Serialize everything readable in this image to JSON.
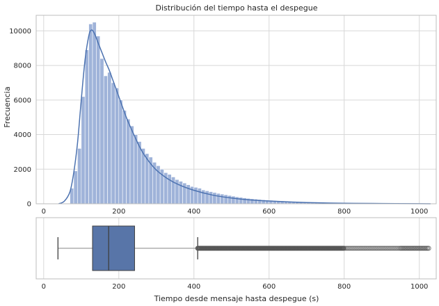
{
  "colors": {
    "bar_fill": "#9fb3d9",
    "bar_stroke": "#ffffff",
    "kde_line": "#4c72b0",
    "box_fill": "#5875a8",
    "box_edge": "#3f3f3f",
    "grid": "#d8d8d8",
    "frame": "#bdbdbd"
  },
  "chart_data": [
    {
      "type": "histogram",
      "title": "Distribución del tiempo hasta el despegue",
      "xlabel": "",
      "ylabel": "Frecuencia",
      "xlim": [
        -20,
        1045
      ],
      "ylim": [
        0,
        10900
      ],
      "xticks": [
        0,
        200,
        400,
        600,
        800,
        1000
      ],
      "yticks": [
        0,
        2000,
        4000,
        6000,
        8000,
        10000
      ],
      "grid": true,
      "bin_start": 70,
      "bin_width": 10,
      "counts": [
        900,
        1900,
        3200,
        6200,
        8900,
        10400,
        10500,
        9700,
        8400,
        7400,
        7600,
        7000,
        6700,
        6000,
        5400,
        4900,
        4500,
        4000,
        3600,
        3200,
        2900,
        2700,
        2400,
        2200,
        2000,
        1800,
        1700,
        1550,
        1400,
        1300,
        1200,
        1100,
        1000,
        950,
        900,
        800,
        750,
        700,
        650,
        600,
        560,
        520,
        480,
        440,
        400,
        370,
        340,
        310,
        290,
        270,
        250,
        230,
        210,
        200,
        180,
        170,
        160,
        150,
        140,
        130,
        120,
        110,
        100,
        95,
        90,
        85,
        80,
        75,
        70,
        65,
        60,
        55,
        50,
        45,
        40,
        35,
        30,
        28,
        26,
        24,
        22,
        20,
        18,
        16,
        14,
        12,
        10,
        8,
        6,
        5,
        4,
        3,
        3,
        2,
        2
      ],
      "kde": {
        "x": [
          40,
          55,
          70,
          80,
          90,
          100,
          110,
          120,
          127,
          135,
          145,
          155,
          165,
          175,
          185,
          200,
          220,
          240,
          260,
          280,
          300,
          330,
          360,
          400,
          450,
          500,
          550,
          600,
          650,
          700,
          800,
          900,
          1000,
          1030
        ],
        "y": [
          0,
          150,
          700,
          1800,
          3500,
          6000,
          8300,
          9700,
          10050,
          9850,
          9300,
          8750,
          8200,
          7700,
          7100,
          6200,
          5000,
          4000,
          3100,
          2450,
          1950,
          1450,
          1100,
          780,
          500,
          330,
          220,
          160,
          110,
          70,
          30,
          15,
          5,
          0
        ]
      }
    },
    {
      "type": "box",
      "xlabel": "Tiempo desde mensaje hasta despegue (s)",
      "xlim": [
        -20,
        1045
      ],
      "xticks": [
        0,
        200,
        400,
        600,
        800,
        1000
      ],
      "grid": true,
      "whisker_low": 38,
      "q1": 130,
      "median": 173,
      "q3": 242,
      "whisker_high": 410,
      "outliers_from": 410,
      "outliers_to": 1025
    }
  ]
}
